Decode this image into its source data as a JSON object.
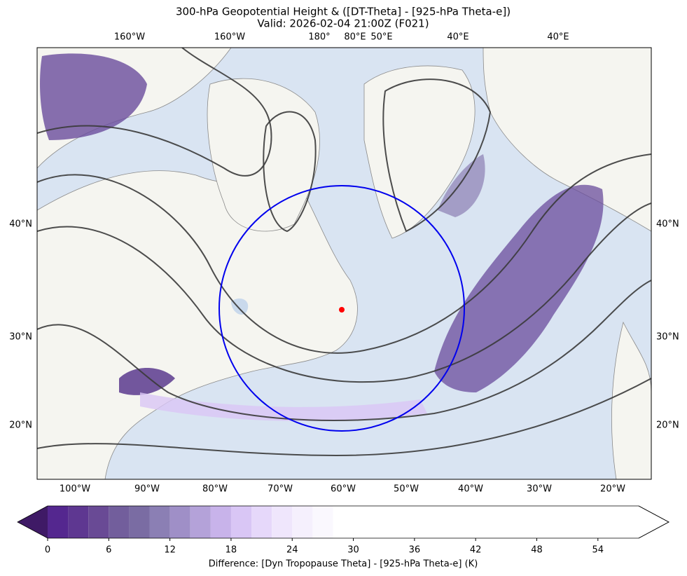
{
  "title": [
    "300-hPa Geopotential Height & ([DT-Theta] - [925-hPa Theta-e])",
    "Valid: 2026-02-04 21:00Z (F021)"
  ],
  "top_labels": [
    "160°W",
    "160°W",
    "180°",
    "80°E",
    "50°E",
    "40°E",
    "40°E"
  ],
  "left_labels": [
    "40°N",
    "30°N",
    "20°N"
  ],
  "right_labels": [
    "40°N",
    "30°N",
    "20°N"
  ],
  "bottom_labels": [
    "100°W",
    "90°W",
    "80°W",
    "70°W",
    "60°W",
    "50°W",
    "40°W",
    "30°W",
    "20°W"
  ],
  "colorbar": {
    "label": "Difference: [Dyn Tropopause Theta] - [925-hPa Theta-e] (K)",
    "clim": [
      0,
      58
    ],
    "ticks": [
      0,
      6,
      12,
      18,
      24,
      30,
      36,
      42,
      48,
      54
    ],
    "levels": [
      0,
      2,
      4,
      6,
      8,
      10,
      12,
      14,
      16,
      18,
      20,
      22,
      24,
      26,
      28,
      58
    ],
    "colors": [
      "#54278f",
      "#5e3791",
      "#694a95",
      "#725e9c",
      "#7a6ca3",
      "#8b7fb4",
      "#9f8fc7",
      "#b4a2d9",
      "#c8b3ea",
      "#d9c6f5",
      "#e6d8fa",
      "#efe6fc",
      "#f5f0fd",
      "#faf8fe",
      "#ffffff"
    ],
    "under_color": "#3f1a66"
  }
}
